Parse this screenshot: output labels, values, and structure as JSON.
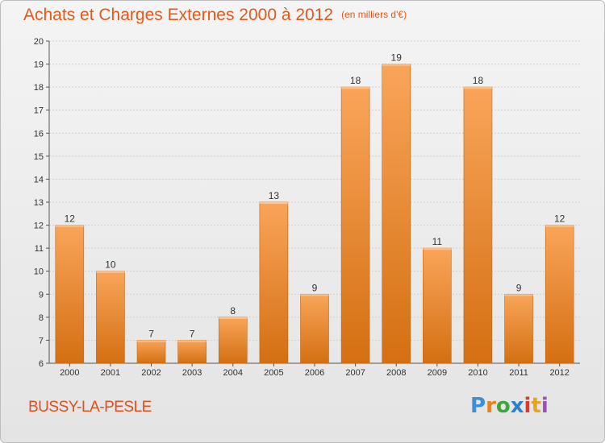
{
  "header": {
    "title": "Achats et Charges Externes 2000 à 2012",
    "subtitle": "(en milliers d'€)"
  },
  "footer": {
    "town": "BUSSY-LA-PESLE",
    "brand": "Proxiti",
    "brand_colors": [
      "#3a8fd8",
      "#e8831f",
      "#3ca63c",
      "#2f7fd0",
      "#d83b2f",
      "#e8a41f",
      "#9a4fc2"
    ]
  },
  "colors": {
    "bar_top": "#f9a55a",
    "bar_bottom": "#d46f12",
    "title": "#e15a1b",
    "grid": "#cfcfcf",
    "axis": "#555555"
  },
  "chart_data": {
    "type": "bar",
    "categories": [
      "2000",
      "2001",
      "2002",
      "2003",
      "2004",
      "2005",
      "2006",
      "2007",
      "2008",
      "2009",
      "2010",
      "2011",
      "2012"
    ],
    "values": [
      12,
      10,
      7,
      7,
      8,
      13,
      9,
      18,
      19,
      11,
      18,
      9,
      12
    ],
    "data_labels": [
      "12",
      "10",
      "7",
      "7",
      "8",
      "13",
      "9",
      "18",
      "19",
      "11",
      "18",
      "9",
      "12"
    ],
    "ylim": [
      6,
      20
    ],
    "yticks": [
      6,
      7,
      8,
      9,
      10,
      11,
      12,
      13,
      14,
      15,
      16,
      17,
      18,
      19,
      20
    ],
    "grid": true,
    "title": "Achats et Charges Externes 2000 à 2012",
    "xlabel": "",
    "ylabel": ""
  }
}
